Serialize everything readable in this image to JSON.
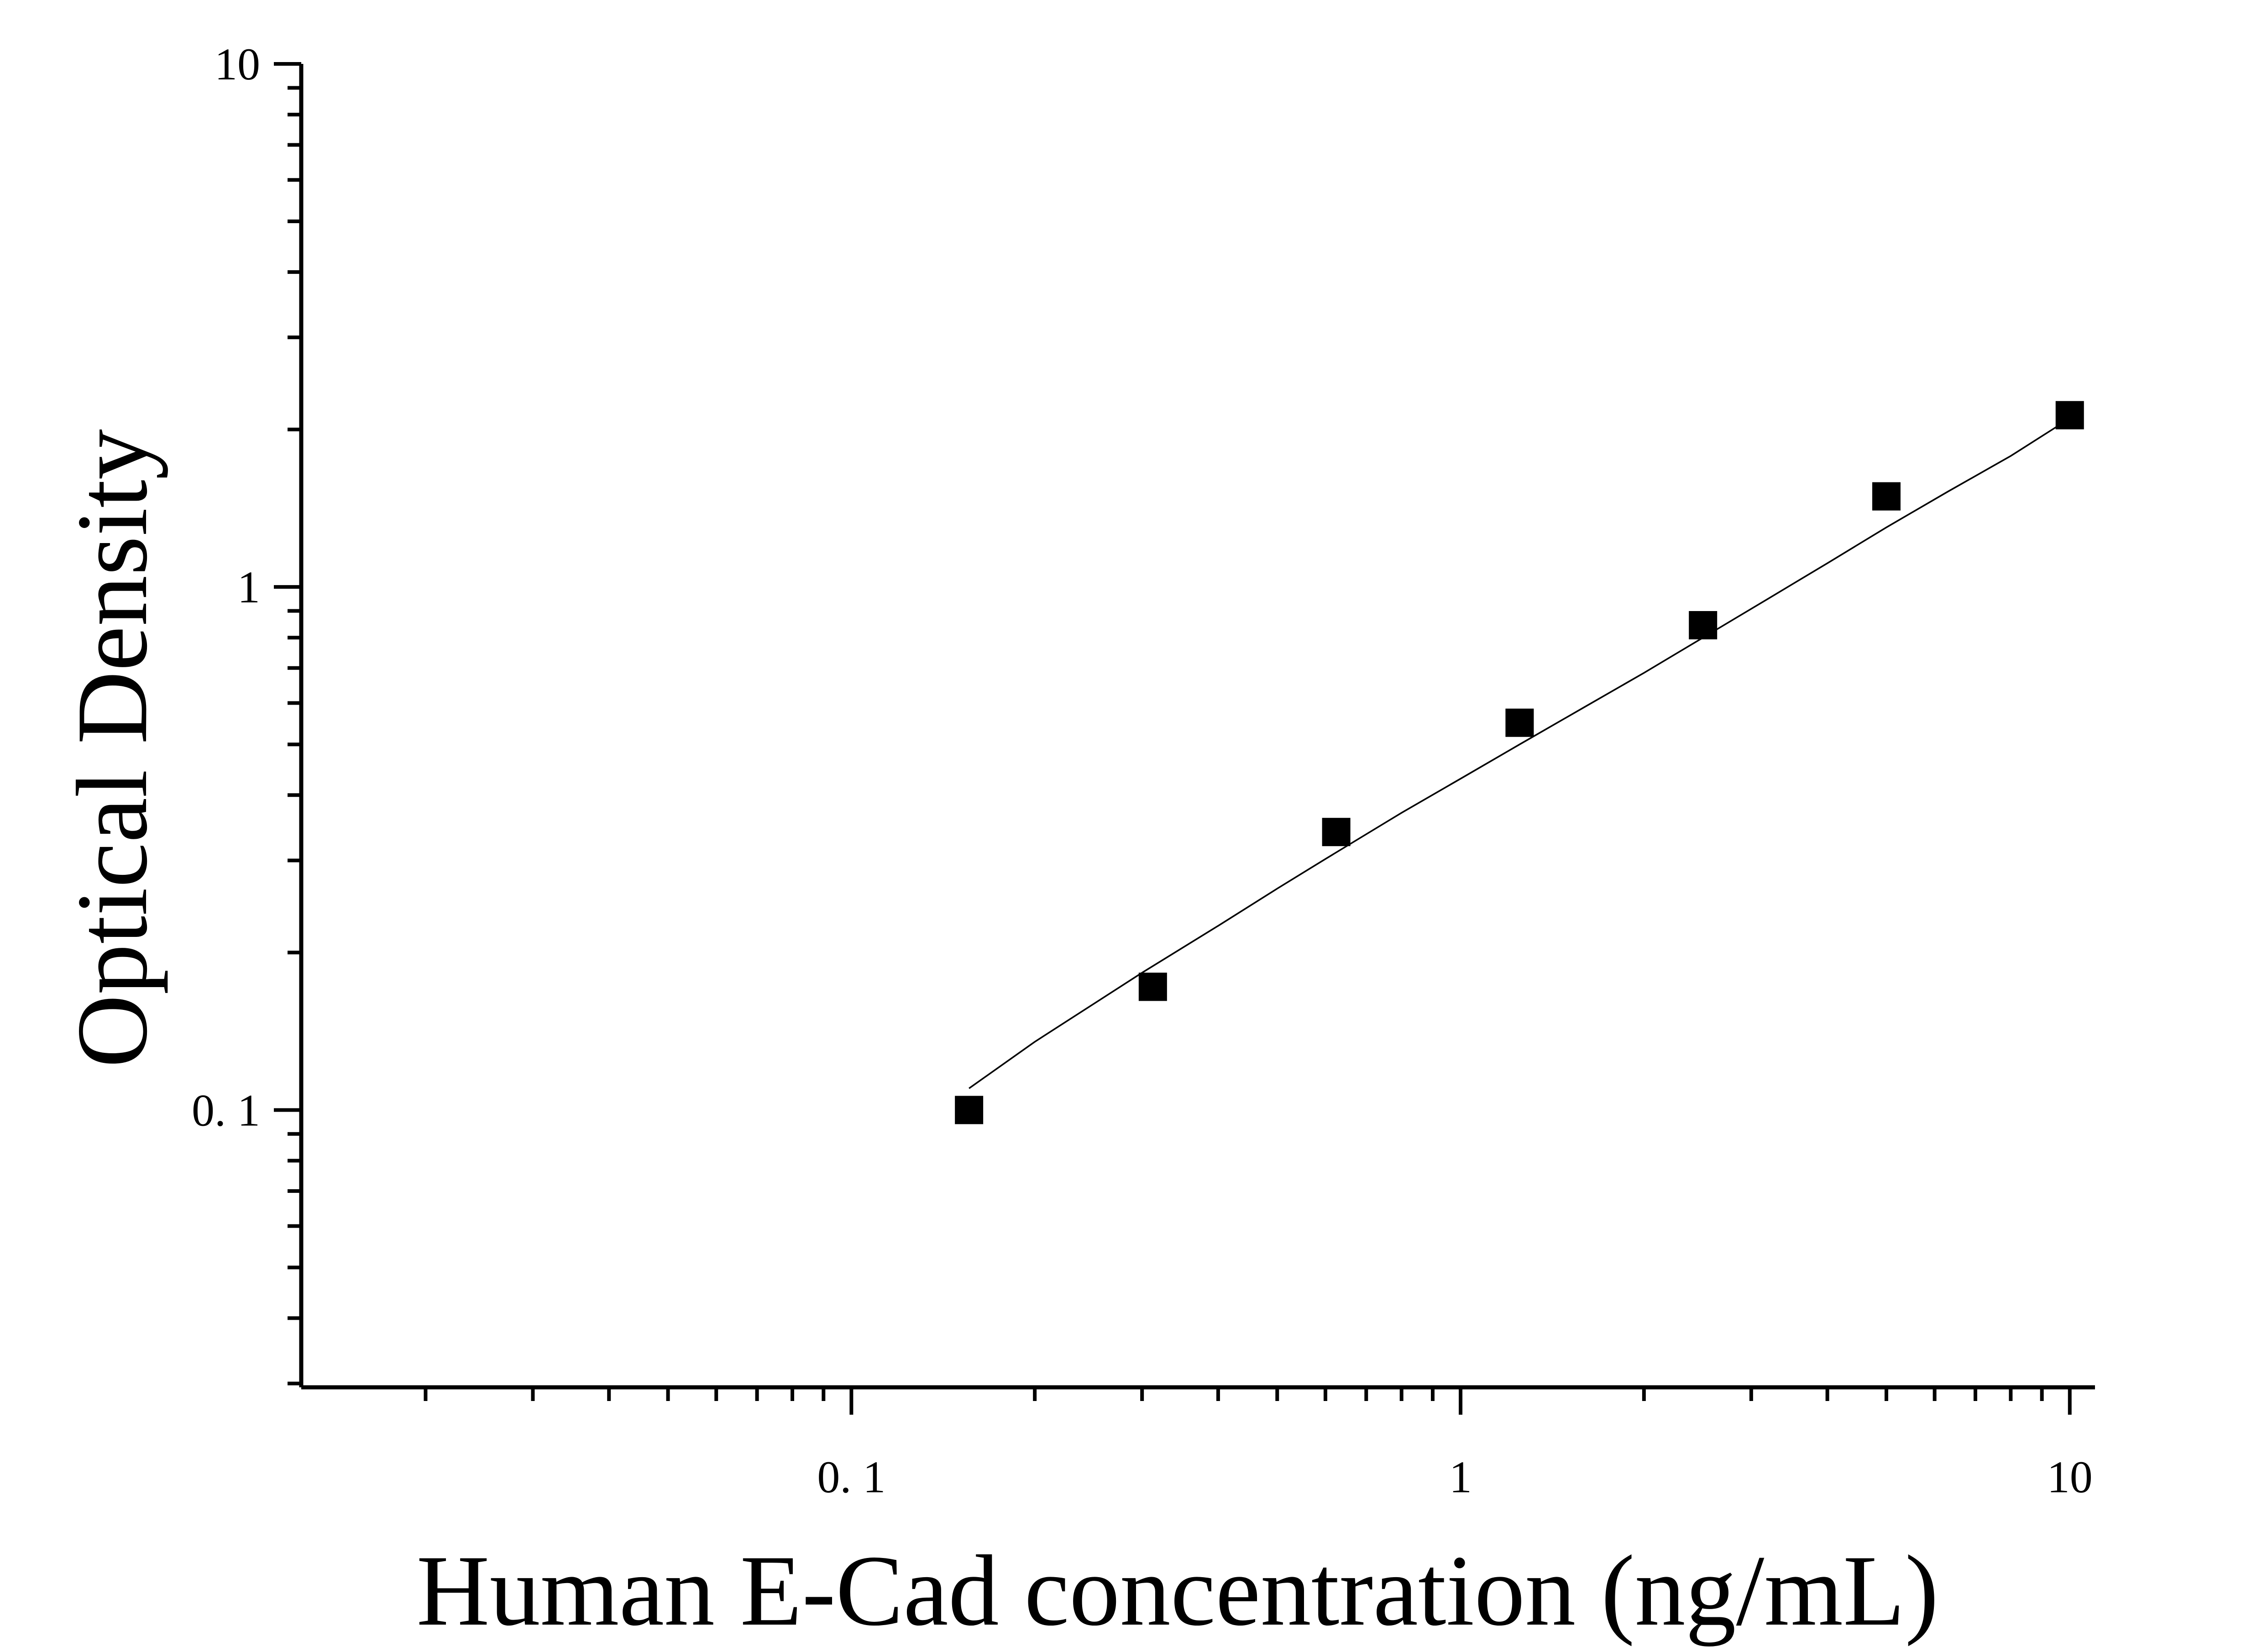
{
  "chart_data": {
    "type": "scatter",
    "xlabel": "Human E-Cad concentration (ng/mL)",
    "ylabel": "Optical Density",
    "x_scale": "log",
    "y_scale": "log",
    "xlim": [
      0.0125,
      11
    ],
    "ylim": [
      0.0295,
      10
    ],
    "x_ticks": [
      {
        "value": 0.1,
        "label": "0. 1"
      },
      {
        "value": 1,
        "label": "1"
      },
      {
        "value": 10,
        "label": "10"
      }
    ],
    "y_ticks": [
      {
        "value": 10,
        "label": "10"
      },
      {
        "value": 1,
        "label": "1"
      },
      {
        "value": 0.1,
        "label": "0. 1"
      }
    ],
    "grid": false,
    "legend": "none",
    "marker": "square",
    "color": "#000000",
    "series": [
      {
        "points": [
          {
            "x": 0.156,
            "y": 0.1
          },
          {
            "x": 0.3125,
            "y": 0.172
          },
          {
            "x": 0.625,
            "y": 0.34
          },
          {
            "x": 1.25,
            "y": 0.55
          },
          {
            "x": 2.5,
            "y": 0.845
          },
          {
            "x": 5,
            "y": 1.49
          },
          {
            "x": 10,
            "y": 2.13
          }
        ]
      }
    ],
    "fit_curve": {
      "x": [
        0.156,
        0.2,
        0.3,
        0.4,
        0.5,
        0.6,
        0.8,
        1.0,
        1.25,
        1.6,
        2.0,
        2.5,
        3.2,
        4.0,
        5.0,
        6.3,
        8.0,
        10.0
      ],
      "y": [
        0.11,
        0.135,
        0.183,
        0.225,
        0.265,
        0.302,
        0.37,
        0.43,
        0.5,
        0.59,
        0.685,
        0.8,
        0.95,
        1.11,
        1.3,
        1.52,
        1.78,
        2.1
      ]
    }
  }
}
